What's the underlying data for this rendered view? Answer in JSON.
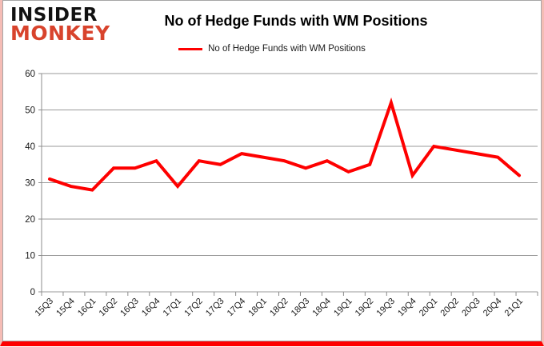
{
  "branding": {
    "logo_line1": "INSIDER",
    "logo_line2": "MONKEY",
    "logo_line1_color": "#111111",
    "logo_line2_color": "#d8432c"
  },
  "header": {
    "title": "No of Hedge Funds with WM Positions"
  },
  "legend": {
    "label": "No of Hedge Funds with WM Positions",
    "line_color": "#fe0000"
  },
  "chart_data": {
    "type": "line",
    "title": "No of Hedge Funds with WM Positions",
    "categories": [
      "15Q3",
      "15Q4",
      "16Q1",
      "16Q2",
      "16Q3",
      "16Q4",
      "17Q1",
      "17Q2",
      "17Q3",
      "17Q4",
      "18Q1",
      "18Q2",
      "18Q3",
      "18Q4",
      "19Q1",
      "19Q2",
      "19Q3",
      "19Q4",
      "20Q1",
      "20Q2",
      "20Q3",
      "20Q4",
      "21Q1"
    ],
    "series": [
      {
        "name": "No of Hedge Funds with WM Positions",
        "color": "#fe0000",
        "values": [
          31,
          29,
          28,
          34,
          34,
          36,
          29,
          36,
          35,
          38,
          37,
          36,
          34,
          36,
          33,
          35,
          52,
          32,
          40,
          39,
          38,
          37,
          32
        ]
      }
    ],
    "ylim": [
      0,
      60
    ],
    "yticks": [
      0,
      10,
      20,
      30,
      40,
      50,
      60
    ],
    "grid": true,
    "legend_position": "top",
    "gridline_color": "#999999",
    "axis_color": "#8c8c8c",
    "tick_label_color": "#1a1a1a"
  },
  "frame": {
    "side_border_color": "#f5bcb5",
    "bottom_border_color": "#fe0000"
  }
}
